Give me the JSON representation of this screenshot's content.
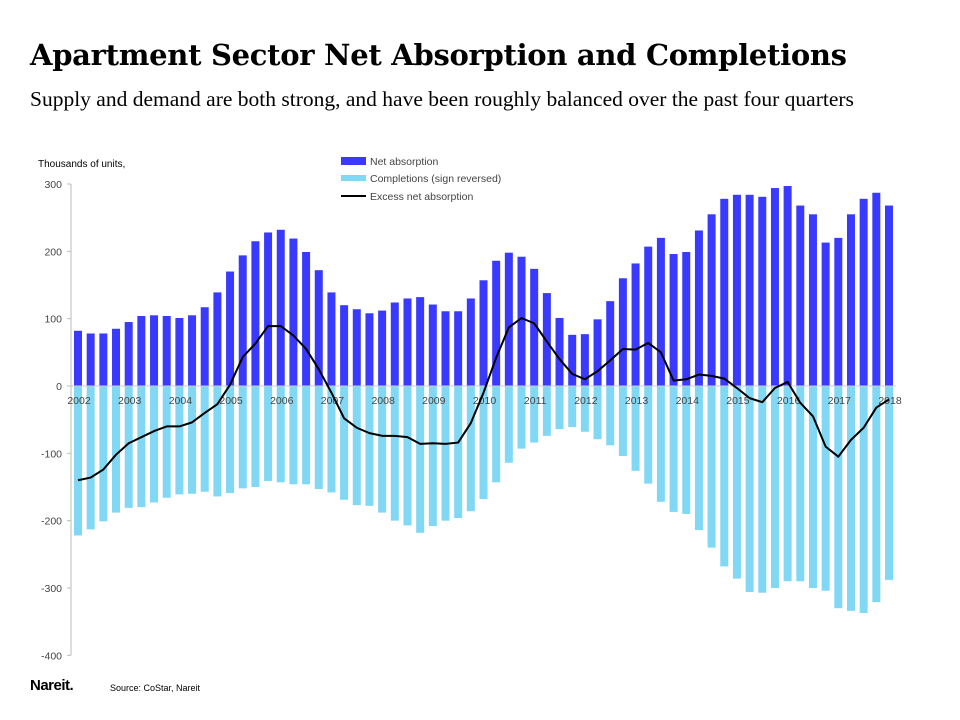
{
  "title": "Apartment Sector Net Absorption and Completions",
  "subtitle": "Supply and demand are both strong, and have been roughly balanced over the past four quarters",
  "logo_text": "Nareit.",
  "source": "Source: CoStar, Nareit",
  "chart_data": {
    "type": "bar",
    "ylabel": "Thousands of units,",
    "ylim": [
      -400,
      300
    ],
    "yticks": [
      300,
      200,
      100,
      0,
      -100,
      -200,
      -300,
      -400
    ],
    "grid": false,
    "legend_placement": "top-center",
    "x_tick_labels": [
      "2002",
      "2003",
      "2004",
      "2005",
      "2006",
      "2007",
      "2008",
      "2009",
      "2010",
      "2011",
      "2012",
      "2013",
      "2014",
      "2015",
      "2016",
      "2017",
      "2018"
    ],
    "x_frequency": "quarterly, 2002Q1 to 2018Q1",
    "series": [
      {
        "name": "Net absorption",
        "type": "bar",
        "color": "#3a3aff",
        "values": [
          82,
          78,
          78,
          85,
          95,
          104,
          105,
          104,
          101,
          105,
          117,
          139,
          170,
          194,
          215,
          228,
          232,
          219,
          199,
          172,
          139,
          120,
          114,
          108,
          112,
          124,
          130,
          132,
          121,
          111,
          111,
          130,
          157,
          186,
          198,
          192,
          174,
          138,
          101,
          76,
          77,
          99,
          126,
          160,
          182,
          207,
          220,
          196,
          199,
          231,
          255,
          278,
          284,
          284,
          281,
          294,
          297,
          268,
          255,
          213,
          220,
          255,
          278,
          287,
          268
        ]
      },
      {
        "name": "Completions (sign reversed)",
        "type": "bar",
        "color": "#80d8f4",
        "values": [
          -222,
          -213,
          -201,
          -188,
          -181,
          -180,
          -173,
          -166,
          -161,
          -160,
          -157,
          -164,
          -159,
          -152,
          -150,
          -141,
          -143,
          -146,
          -146,
          -153,
          -158,
          -169,
          -177,
          -178,
          -188,
          -200,
          -207,
          -218,
          -208,
          -200,
          -196,
          -186,
          -168,
          -143,
          -114,
          -93,
          -84,
          -74,
          -64,
          -61,
          -68,
          -79,
          -88,
          -104,
          -126,
          -145,
          -172,
          -187,
          -190,
          -214,
          -240,
          -268,
          -286,
          -306,
          -307,
          -300,
          -290,
          -290,
          -300,
          -304,
          -330,
          -334,
          -337,
          -321,
          -288
        ]
      },
      {
        "name": "Excess net absorption",
        "type": "line",
        "color": "#000000",
        "values": [
          -140,
          -136,
          -124,
          -102,
          -85,
          -76,
          -67,
          -60,
          -60,
          -54,
          -40,
          -27,
          2,
          43,
          63,
          89,
          89,
          75,
          55,
          25,
          -10,
          -48,
          -62,
          -70,
          -74,
          -74,
          -76,
          -86,
          -85,
          -86,
          -84,
          -55,
          -10,
          42,
          87,
          101,
          93,
          66,
          40,
          18,
          10,
          22,
          38,
          55,
          54,
          64,
          50,
          8,
          10,
          17,
          15,
          11,
          -3,
          -18,
          -24,
          -3,
          6,
          -25,
          -45,
          -90,
          -105,
          -80,
          -62,
          -32,
          -20
        ]
      }
    ]
  }
}
